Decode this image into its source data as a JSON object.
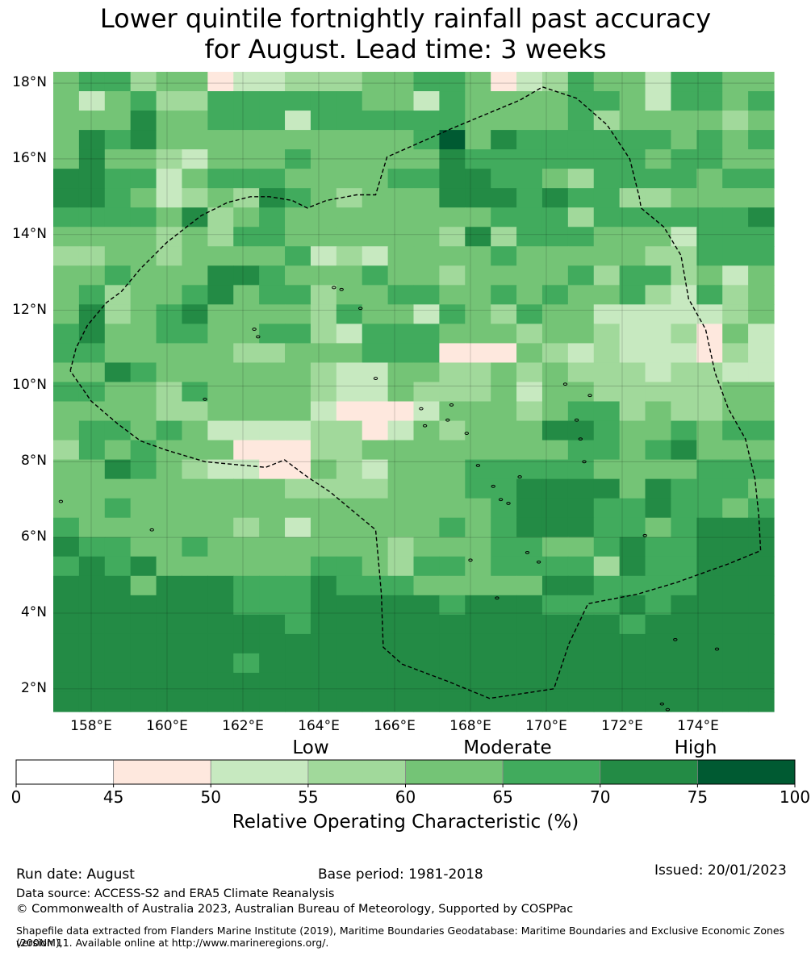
{
  "title": {
    "line1": "Lower quintile fortnightly rainfall past accuracy",
    "line2": "for August. Lead time: 3 weeks"
  },
  "map": {
    "lat_labels": [
      "18°N",
      "16°N",
      "14°N",
      "12°N",
      "10°N",
      "8°N",
      "6°N",
      "4°N",
      "2°N"
    ],
    "lon_labels": [
      "158°E",
      "160°E",
      "162°E",
      "164°E",
      "166°E",
      "168°E",
      "170°E",
      "172°E",
      "174°E"
    ],
    "extent": {
      "lon_min": 157.0,
      "lon_max": 176.0,
      "lat_min": 1.4,
      "lat_max": 18.3
    },
    "grid_rows": [
      "4553441223334455412354425544",
      "4245335555554425444455425545",
      "4446445552555555444453444434",
      "4656444444444457465555554545",
      "4644324445444446555555545544",
      "6655245554444556655435555455",
      "6654234365434446665655334444",
      "5555463454444444455535555556",
      "4444343554444443635554442555",
      "3344344445232444454444433555",
      "4454446654445443444453553424",
      "4534456455344554454544532534",
      "4634564444354425435442222234",
      "5644554455325554443443223142",
      "5544444334445551114323222132",
      "4465444444322443343433323322",
      "5544354444322433342443333344",
      "4444334444211124443455343344",
      "4554542222331243444665445455",
      "3545444111334444444455456444",
      "4465432211432444555554444555",
      "4444444443333444556666465554",
      "4454444444444444456665565545",
      "5444444342444445456665545666",
      "6554454444444344455445655666",
      "5656444444554355455553655666",
      "6664666555655544444665555666",
      "6666666555666665666555656666",
      "6666666665666666666666566666",
      "6666666666666666666666666666",
      "6666666566666666666666666666",
      "6666666666666666666666666666",
      "6666666666666666666666666666"
    ],
    "outline_lonlat": [
      [
        157.45,
        10.4
      ],
      [
        157.6,
        11.0
      ],
      [
        157.9,
        11.6
      ],
      [
        158.4,
        12.2
      ],
      [
        158.8,
        12.5
      ],
      [
        159.3,
        13.1
      ],
      [
        160.0,
        13.8
      ],
      [
        160.9,
        14.5
      ],
      [
        161.6,
        14.85
      ],
      [
        162.2,
        15.0
      ],
      [
        162.7,
        15.0
      ],
      [
        163.3,
        14.9
      ],
      [
        163.7,
        14.7
      ],
      [
        164.2,
        14.9
      ],
      [
        165.0,
        15.05
      ],
      [
        165.5,
        15.05
      ],
      [
        165.8,
        16.05
      ],
      [
        167.5,
        16.8
      ],
      [
        169.3,
        17.55
      ],
      [
        169.9,
        17.9
      ],
      [
        170.8,
        17.6
      ],
      [
        171.6,
        16.9
      ],
      [
        172.2,
        16.0
      ],
      [
        172.45,
        15.0
      ],
      [
        172.5,
        14.7
      ],
      [
        173.1,
        14.2
      ],
      [
        173.55,
        13.45
      ],
      [
        173.75,
        12.3
      ],
      [
        174.2,
        11.5
      ],
      [
        174.45,
        10.35
      ],
      [
        174.8,
        9.4
      ],
      [
        175.25,
        8.6
      ],
      [
        175.5,
        7.55
      ],
      [
        175.6,
        6.6
      ],
      [
        175.65,
        5.65
      ],
      [
        174.8,
        5.3
      ],
      [
        173.4,
        4.8
      ],
      [
        172.4,
        4.5
      ],
      [
        171.1,
        4.25
      ],
      [
        170.6,
        3.2
      ],
      [
        170.2,
        2.0
      ],
      [
        169.2,
        1.85
      ],
      [
        168.5,
        1.75
      ],
      [
        167.4,
        2.2
      ],
      [
        166.2,
        2.65
      ],
      [
        165.7,
        3.1
      ],
      [
        165.65,
        4.5
      ],
      [
        165.6,
        5.1
      ],
      [
        165.5,
        6.2
      ],
      [
        164.9,
        6.7
      ],
      [
        164.3,
        7.2
      ],
      [
        163.7,
        7.6
      ],
      [
        163.1,
        8.05
      ],
      [
        162.6,
        7.85
      ],
      [
        161.0,
        8.0
      ],
      [
        160.0,
        8.3
      ],
      [
        159.3,
        8.55
      ],
      [
        158.7,
        9.0
      ],
      [
        158.0,
        9.6
      ],
      [
        157.45,
        10.4
      ]
    ],
    "islands_lonlat": [
      [
        157.2,
        6.95
      ],
      [
        159.6,
        6.2
      ],
      [
        161.0,
        9.65
      ],
      [
        162.3,
        11.5
      ],
      [
        162.4,
        11.3
      ],
      [
        164.4,
        12.6
      ],
      [
        164.6,
        12.55
      ],
      [
        165.1,
        12.05
      ],
      [
        165.5,
        10.2
      ],
      [
        166.7,
        9.4
      ],
      [
        166.8,
        8.95
      ],
      [
        167.5,
        9.5
      ],
      [
        167.4,
        9.1
      ],
      [
        167.9,
        8.75
      ],
      [
        168.2,
        7.9
      ],
      [
        168.6,
        7.35
      ],
      [
        169.3,
        7.6
      ],
      [
        168.8,
        7.0
      ],
      [
        169.0,
        6.9
      ],
      [
        168.0,
        5.4
      ],
      [
        169.5,
        5.6
      ],
      [
        169.8,
        5.35
      ],
      [
        170.5,
        10.05
      ],
      [
        170.8,
        9.1
      ],
      [
        170.9,
        8.6
      ],
      [
        171.0,
        8.0
      ],
      [
        171.15,
        9.75
      ],
      [
        172.6,
        6.05
      ],
      [
        173.4,
        3.3
      ],
      [
        174.5,
        3.05
      ],
      [
        173.2,
        1.45
      ],
      [
        173.05,
        1.6
      ],
      [
        168.7,
        4.4
      ]
    ]
  },
  "colorbar": {
    "ticks": [
      "0",
      "45",
      "50",
      "55",
      "60",
      "65",
      "70",
      "75",
      "100"
    ],
    "colors": [
      "#ffffff",
      "#fee8de",
      "#c7e9c0",
      "#a1d99b",
      "#74c476",
      "#41ab5d",
      "#238b45",
      "#005a32"
    ],
    "categories": [
      "Low",
      "Moderate",
      "High"
    ],
    "label": "Relative Operating Characteristic (%)"
  },
  "footer": {
    "run_date": "Run date: August",
    "base_period": "Base period: 1981-2018",
    "issued": "Issued: 20/01/2023",
    "data_source": "Data source: ACCESS-S2 and ERA5 Climate Reanalysis",
    "copyright": "© Commonwealth of Australia 2023, Australian Bureau of Meteorology, Supported by COSPPac",
    "shapefile_line1": "Shapefile data extracted from Flanders Marine Institute (2019), Maritime Boundaries Geodatabase: Maritime Boundaries and Exclusive Economic Zones (200NM),",
    "shapefile_line2": "version 11. Available online at http://www.marineregions.org/."
  }
}
